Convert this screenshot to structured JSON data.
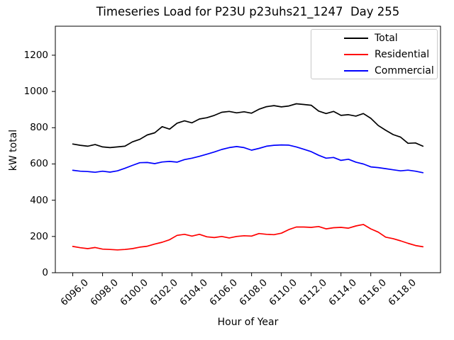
{
  "figure": {
    "background": "#ffffff",
    "text_color": "#000000"
  },
  "chart_data": {
    "type": "line",
    "title": "Timeseries Load for P23U p23uhs21_1247  Day 255",
    "xlabel": "Hour of Year",
    "ylabel": "kW total",
    "xlim": [
      6094.83,
      6120.68
    ],
    "ylim": [
      0,
      1360
    ],
    "x_ticks": [
      6096,
      6098,
      6100,
      6102,
      6104,
      6106,
      6108,
      6110,
      6112,
      6114,
      6116,
      6118
    ],
    "x_tick_labels": [
      "6096.0",
      "6098.0",
      "6100.0",
      "6102.0",
      "6104.0",
      "6106.0",
      "6108.0",
      "6110.0",
      "6112.0",
      "6114.0",
      "6116.0",
      "6118.0"
    ],
    "y_ticks": [
      0,
      200,
      400,
      600,
      800,
      1000,
      1200
    ],
    "y_tick_labels": [
      "0",
      "200",
      "400",
      "600",
      "800",
      "1000",
      "1200"
    ],
    "x_tick_rotation_deg": 43,
    "grid": false,
    "legend": {
      "position": "upper right",
      "border_color": "#c8c8c8",
      "background": "#ffffff"
    },
    "x_start": 6096.0,
    "x_step": 0.5,
    "x_end": 6119.5,
    "series": [
      {
        "name": "Total",
        "color": "#000000",
        "values": [
          710,
          703,
          698,
          707,
          694,
          690,
          694,
          698,
          722,
          736,
          760,
          772,
          806,
          792,
          825,
          838,
          827,
          848,
          855,
          868,
          885,
          890,
          882,
          888,
          880,
          902,
          916,
          922,
          915,
          920,
          932,
          928,
          924,
          892,
          878,
          890,
          868,
          872,
          864,
          878,
          852,
          812,
          786,
          762,
          748,
          714,
          716,
          698
        ]
      },
      {
        "name": "Residential",
        "color": "#ff0000",
        "values": [
          145,
          138,
          133,
          139,
          130,
          128,
          126,
          128,
          133,
          141,
          146,
          158,
          168,
          182,
          206,
          212,
          202,
          212,
          198,
          194,
          200,
          192,
          200,
          204,
          202,
          216,
          212,
          210,
          218,
          238,
          252,
          252,
          250,
          255,
          242,
          248,
          250,
          246,
          258,
          266,
          242,
          224,
          196,
          188,
          176,
          162,
          150,
          143
        ]
      },
      {
        "name": "Commercial",
        "color": "#0000ff",
        "values": [
          565,
          560,
          558,
          554,
          560,
          555,
          562,
          576,
          592,
          607,
          608,
          602,
          611,
          614,
          610,
          624,
          632,
          642,
          654,
          666,
          680,
          690,
          696,
          690,
          676,
          686,
          698,
          703,
          705,
          704,
          694,
          681,
          668,
          648,
          632,
          636,
          620,
          626,
          610,
          600,
          584,
          580,
          574,
          568,
          562,
          566,
          560,
          552
        ]
      }
    ]
  }
}
